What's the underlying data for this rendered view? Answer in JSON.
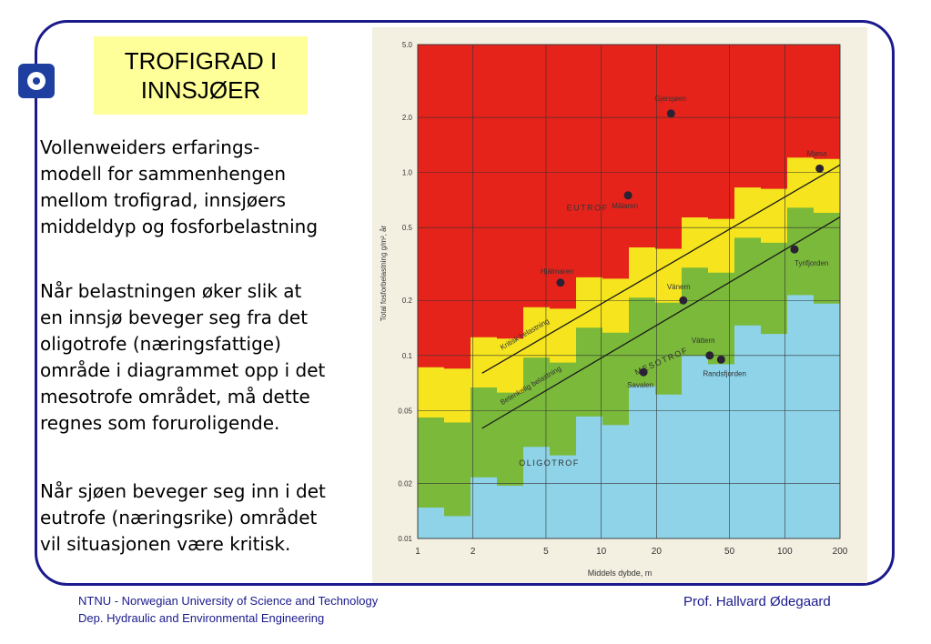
{
  "slide": {
    "title_lines": [
      "TROFIGRAD I",
      "INNSJØER"
    ],
    "paragraph1": [
      "Vollenweiders erfarings-",
      "modell for sammenhengen",
      "mellom trofigrad, innsjøers",
      "middeldyp og fosforbelastning"
    ],
    "paragraph2": [
      "Når belastningen øker slik at",
      "en innsjø beveger seg fra det",
      "oligotrofe (næringsfattige)",
      "område i diagrammet opp i det",
      "mesotrofe området, må dette",
      "regnes som foruroligende."
    ],
    "paragraph3": [
      "Når sjøen beveger seg inn i det",
      "eutrofe (næringsrike) området",
      "vil situasjonen være kritisk."
    ],
    "footer_left": [
      "NTNU - Norwegian University of Science and Technology",
      "Dep. Hydraulic and Environmental Engineering"
    ],
    "footer_right": "Prof. Hallvard Ødegaard"
  },
  "colors": {
    "eutrof": "#e5231b",
    "yellow": "#f5e41e",
    "mesotrof": "#7ab93a",
    "oligotrof": "#8ed3e8",
    "frame": "#1a1a8c"
  },
  "chart_data": {
    "type": "scatter",
    "xlabel": "Middels dybde, m",
    "ylabel": "Total fosforbelastning g/m², år",
    "x_scale": "log",
    "y_scale": "log",
    "xlim": [
      1,
      200
    ],
    "ylim": [
      0.01,
      5.0
    ],
    "x_ticks": [
      1,
      2,
      5,
      10,
      20,
      50,
      100,
      200
    ],
    "x_tick_labels": [
      "1",
      "2",
      "5",
      "10",
      "20",
      "50",
      "100",
      "200"
    ],
    "y_ticks": [
      0.01,
      0.02,
      0.05,
      0.1,
      0.2,
      0.5,
      1.0,
      2.0,
      5.0
    ],
    "y_tick_labels": [
      "0.01",
      "0.02",
      "0.05",
      "0.1",
      "0.2",
      "0.5",
      "1.0",
      "2.0",
      "5.0"
    ],
    "zones": [
      "EUTROF",
      "MESOTROF",
      "OLIGOTROF"
    ],
    "lines": [
      {
        "name": "Kritisk belastning",
        "x": [
          2,
          200
        ],
        "y": [
          0.08,
          1.1
        ]
      },
      {
        "name": "Betenkelig belastning",
        "x": [
          2,
          200
        ],
        "y": [
          0.04,
          0.57
        ]
      }
    ],
    "points": [
      {
        "name": "Gjersjøen",
        "x": 24,
        "y": 2.1
      },
      {
        "name": "Mjøsa",
        "x": 155,
        "y": 1.05
      },
      {
        "name": "Mälaren",
        "x": 14,
        "y": 0.75
      },
      {
        "name": "Hjälmaren",
        "x": 6,
        "y": 0.25
      },
      {
        "name": "Vänern",
        "x": 28,
        "y": 0.2
      },
      {
        "name": "Tyrifjorden",
        "x": 113,
        "y": 0.38
      },
      {
        "name": "Vättern",
        "x": 39,
        "y": 0.1
      },
      {
        "name": "Randsfjorden",
        "x": 45,
        "y": 0.095
      },
      {
        "name": "Savalen",
        "x": 17,
        "y": 0.081
      }
    ]
  }
}
